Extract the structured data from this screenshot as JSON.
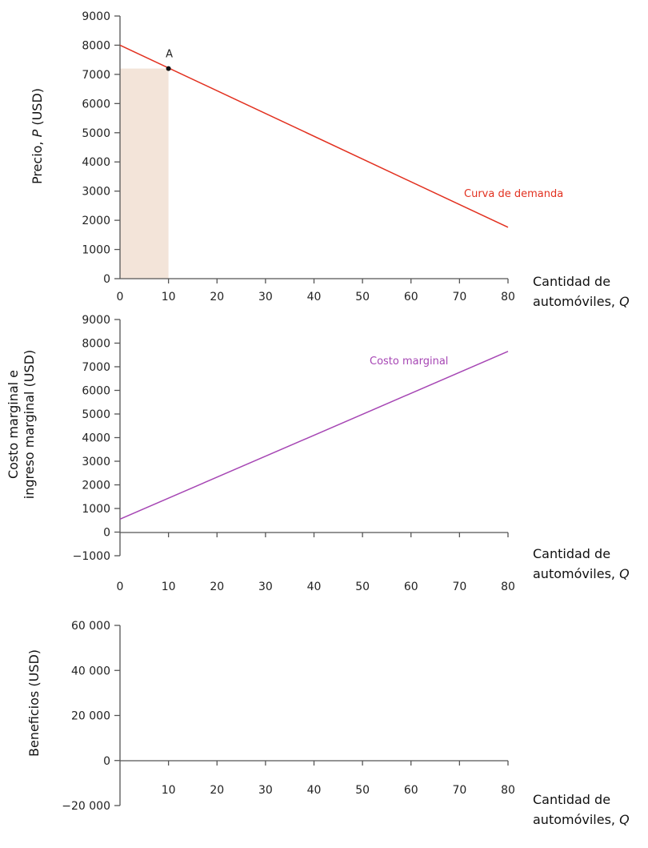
{
  "chart_data": [
    {
      "type": "line",
      "ylabel": "Precio, P (USD)",
      "ylabel_parts": [
        "Precio, ",
        "P",
        " (USD)"
      ],
      "xlabel_lines": [
        "Cantidad de",
        "automóviles, Q"
      ],
      "xlim": [
        0,
        80
      ],
      "ylim": [
        0,
        9000
      ],
      "xticks": [
        0,
        10,
        20,
        30,
        40,
        50,
        60,
        70,
        80
      ],
      "yticks": [
        0,
        1000,
        2000,
        3000,
        4000,
        5000,
        6000,
        7000,
        8000,
        9000
      ],
      "ytick_labels": [
        "0",
        "1000",
        "2000",
        "3000",
        "4000",
        "5000",
        "6000",
        "7000",
        "8000",
        "9000"
      ],
      "series": [
        {
          "name": "Curva de demanda",
          "color": "#e2301f",
          "x": [
            0,
            80
          ],
          "y": [
            8000,
            1760
          ]
        }
      ],
      "points": [
        {
          "label": "A",
          "x": 10,
          "y": 7200,
          "color": "#111111"
        }
      ],
      "shaded_region": {
        "x": [
          0,
          10
        ],
        "y": [
          0,
          7200
        ],
        "color": "#f3e4d9"
      },
      "grid": false
    },
    {
      "type": "line",
      "ylabel_lines": [
        "Costo marginal e",
        "ingreso marginal (USD)"
      ],
      "xlabel_lines": [
        "Cantidad de",
        "automóviles, Q"
      ],
      "xlim": [
        0,
        80
      ],
      "ylim": [
        -1000,
        9000
      ],
      "xticks": [
        0,
        10,
        20,
        30,
        40,
        50,
        60,
        70,
        80
      ],
      "yticks": [
        -1000,
        0,
        1000,
        2000,
        3000,
        4000,
        5000,
        6000,
        7000,
        8000,
        9000
      ],
      "ytick_labels": [
        "−1000",
        "0",
        "1000",
        "2000",
        "3000",
        "4000",
        "5000",
        "6000",
        "7000",
        "8000",
        "9000"
      ],
      "series": [
        {
          "name": "Costo marginal",
          "color": "#a646b4",
          "x": [
            0,
            80
          ],
          "y": [
            550,
            7650
          ]
        }
      ],
      "grid": false
    },
    {
      "type": "line",
      "ylabel": "Beneficios (USD)",
      "xlabel_lines": [
        "Cantidad de",
        "automóviles, Q"
      ],
      "xlim": [
        0,
        80
      ],
      "ylim": [
        -20000,
        60000
      ],
      "xticks": [
        10,
        20,
        30,
        40,
        50,
        60,
        70,
        80
      ],
      "yticks": [
        -20000,
        0,
        20000,
        40000,
        60000
      ],
      "ytick_labels": [
        "−20 000",
        "0",
        "20 000",
        "40 000",
        "60 000"
      ],
      "series": [],
      "grid": false
    }
  ]
}
